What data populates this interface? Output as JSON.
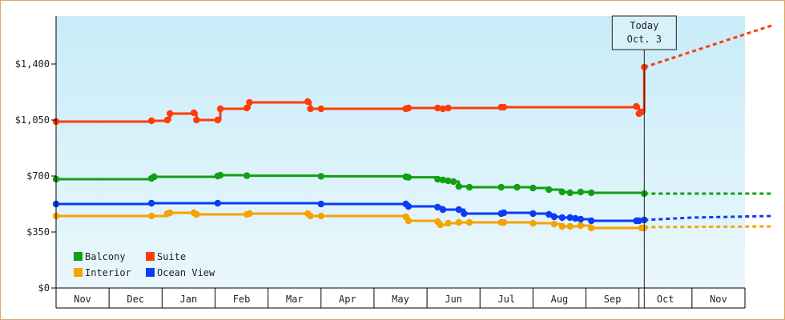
{
  "chart_data": {
    "type": "line",
    "title": "",
    "xlabel": "",
    "ylabel": "",
    "ylim": [
      0,
      1700
    ],
    "y_ticks": [
      "$0",
      "$350",
      "$700",
      "$1,050",
      "$1,400"
    ],
    "y_tick_values": [
      0,
      350,
      700,
      1050,
      1400
    ],
    "months": [
      "Nov",
      "Dec",
      "Jan",
      "Feb",
      "Mar",
      "Apr",
      "May",
      "Jun",
      "Jul",
      "Aug",
      "Sep",
      "Oct",
      "Nov"
    ],
    "x_domain": [
      0,
      13
    ],
    "today": {
      "label_line1": "Today",
      "label_line2": "Oct. 3",
      "x": 11.1
    },
    "legend": [
      {
        "name": "Balcony",
        "color": "#11a011"
      },
      {
        "name": "Suite",
        "color": "#ff3b0a"
      },
      {
        "name": "Interior",
        "color": "#f5a300"
      },
      {
        "name": "Ocean View",
        "color": "#0a3cf5"
      }
    ],
    "series": [
      {
        "name": "Balcony",
        "color": "#11a011",
        "points": [
          [
            0,
            680
          ],
          [
            1.8,
            685
          ],
          [
            1.85,
            695
          ],
          [
            3.05,
            700
          ],
          [
            3.1,
            705
          ],
          [
            3.6,
            702
          ],
          [
            5.0,
            698
          ],
          [
            6.6,
            695
          ],
          [
            6.65,
            692
          ],
          [
            7.2,
            680
          ],
          [
            7.3,
            675
          ],
          [
            7.4,
            670
          ],
          [
            7.5,
            665
          ],
          [
            7.6,
            635
          ],
          [
            7.8,
            630
          ],
          [
            8.4,
            630
          ],
          [
            8.7,
            630
          ],
          [
            9.0,
            625
          ],
          [
            9.3,
            615
          ],
          [
            9.55,
            600
          ],
          [
            9.7,
            595
          ],
          [
            9.9,
            600
          ],
          [
            10.1,
            595
          ],
          [
            11.1,
            590
          ]
        ],
        "forecast": [
          [
            11.1,
            590
          ],
          [
            13.5,
            590
          ]
        ]
      },
      {
        "name": "Suite",
        "color": "#ff3b0a",
        "points": [
          [
            0,
            1040
          ],
          [
            1.8,
            1045
          ],
          [
            2.1,
            1050
          ],
          [
            2.15,
            1090
          ],
          [
            2.6,
            1095
          ],
          [
            2.65,
            1050
          ],
          [
            3.05,
            1050
          ],
          [
            3.1,
            1120
          ],
          [
            3.6,
            1125
          ],
          [
            3.65,
            1160
          ],
          [
            4.75,
            1165
          ],
          [
            4.8,
            1120
          ],
          [
            5.0,
            1120
          ],
          [
            6.6,
            1120
          ],
          [
            6.65,
            1125
          ],
          [
            7.2,
            1125
          ],
          [
            7.3,
            1120
          ],
          [
            7.4,
            1125
          ],
          [
            8.4,
            1130
          ],
          [
            8.45,
            1130
          ],
          [
            10.95,
            1135
          ],
          [
            11.0,
            1090
          ],
          [
            11.05,
            1100
          ],
          [
            11.1,
            1380
          ]
        ],
        "forecast": [
          [
            11.1,
            1380
          ],
          [
            13.5,
            1640
          ]
        ]
      },
      {
        "name": "Interior",
        "color": "#f5a300",
        "points": [
          [
            0,
            450
          ],
          [
            1.8,
            450
          ],
          [
            2.1,
            465
          ],
          [
            2.15,
            470
          ],
          [
            2.6,
            470
          ],
          [
            2.65,
            460
          ],
          [
            3.6,
            460
          ],
          [
            3.65,
            465
          ],
          [
            4.75,
            465
          ],
          [
            4.8,
            450
          ],
          [
            5.0,
            450
          ],
          [
            6.6,
            445
          ],
          [
            6.65,
            420
          ],
          [
            7.2,
            415
          ],
          [
            7.25,
            395
          ],
          [
            7.4,
            405
          ],
          [
            7.6,
            410
          ],
          [
            7.8,
            410
          ],
          [
            8.4,
            410
          ],
          [
            8.45,
            410
          ],
          [
            9.0,
            405
          ],
          [
            9.4,
            400
          ],
          [
            9.55,
            385
          ],
          [
            9.7,
            385
          ],
          [
            9.9,
            390
          ],
          [
            10.1,
            375
          ],
          [
            11.05,
            375
          ],
          [
            11.1,
            375
          ]
        ],
        "forecast": [
          [
            11.1,
            380
          ],
          [
            13.5,
            385
          ]
        ]
      },
      {
        "name": "Ocean View",
        "color": "#0a3cf5",
        "points": [
          [
            0,
            525
          ],
          [
            1.8,
            530
          ],
          [
            3.05,
            530
          ],
          [
            5.0,
            525
          ],
          [
            6.6,
            525
          ],
          [
            6.65,
            510
          ],
          [
            7.2,
            505
          ],
          [
            7.3,
            490
          ],
          [
            7.6,
            490
          ],
          [
            7.7,
            465
          ],
          [
            8.4,
            465
          ],
          [
            8.45,
            470
          ],
          [
            9.0,
            465
          ],
          [
            9.3,
            460
          ],
          [
            9.4,
            445
          ],
          [
            9.55,
            440
          ],
          [
            9.7,
            440
          ],
          [
            9.8,
            435
          ],
          [
            9.9,
            430
          ],
          [
            10.1,
            420
          ],
          [
            10.95,
            420
          ],
          [
            11.0,
            420
          ],
          [
            11.1,
            425
          ]
        ],
        "forecast": [
          [
            11.1,
            425
          ],
          [
            12.0,
            440
          ],
          [
            13.5,
            450
          ]
        ]
      }
    ]
  }
}
